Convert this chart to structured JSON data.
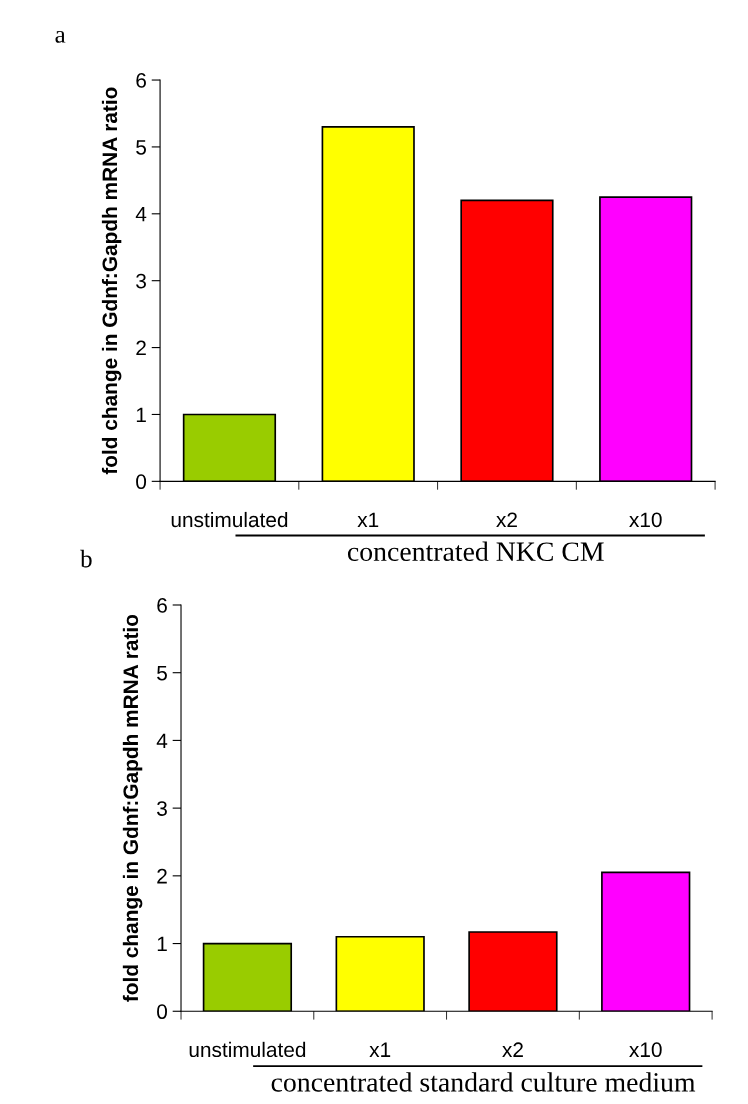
{
  "chart_data": [
    {
      "type": "bar",
      "title": "a",
      "ylabel": "fold change in Gdnf:Gapdh mRNA ratio",
      "categories": [
        "unstimulated",
        "x1",
        "x2",
        "x10"
      ],
      "values": [
        1.0,
        5.3,
        4.2,
        4.25
      ],
      "colors": [
        "#99cc00",
        "#ffff00",
        "#ff0000",
        "#ff00ff"
      ],
      "ylim": [
        0,
        6
      ],
      "yticks": [
        0,
        1,
        2,
        3,
        4,
        5,
        6
      ],
      "grid": false,
      "annotations": [
        "concentrated NKC CM"
      ]
    },
    {
      "type": "bar",
      "title": "b",
      "ylabel": "fold change in Gdnf:Gapdh mRNA ratio",
      "categories": [
        "unstimulated",
        "x1",
        "x2",
        "x10"
      ],
      "values": [
        1.0,
        1.1,
        1.17,
        2.05
      ],
      "colors": [
        "#99cc00",
        "#ffff00",
        "#ff0000",
        "#ff00ff"
      ],
      "ylim": [
        0,
        6
      ],
      "yticks": [
        0,
        1,
        2,
        3,
        4,
        5,
        6
      ],
      "grid": false,
      "annotations": [
        "concentrated standard culture medium"
      ]
    }
  ]
}
